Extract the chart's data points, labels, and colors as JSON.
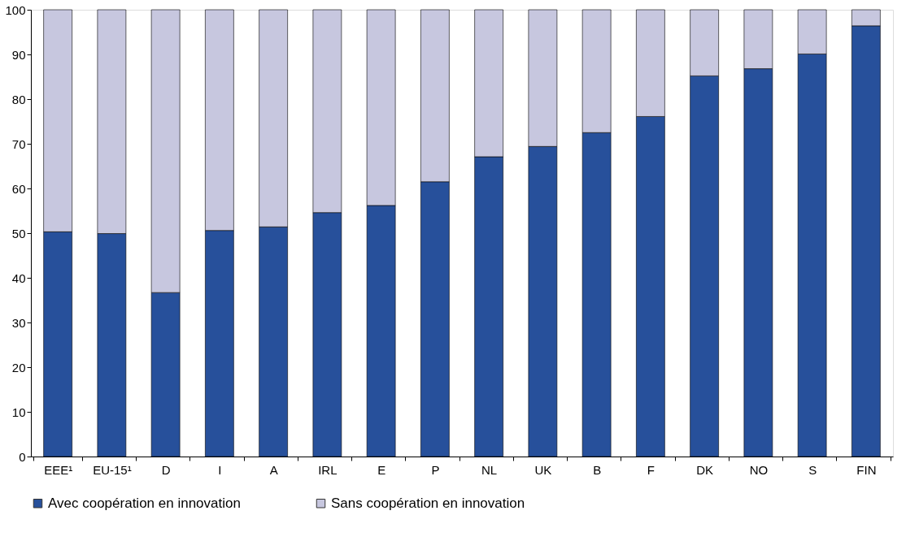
{
  "chart_data": {
    "type": "bar",
    "stacked": true,
    "categories": [
      "EEE¹",
      "EU-15¹",
      "D",
      "I",
      "A",
      "IRL",
      "E",
      "P",
      "NL",
      "UK",
      "B",
      "F",
      "DK",
      "NO",
      "S",
      "FIN"
    ],
    "series": [
      {
        "name": "Avec coopération en innovation",
        "color": "#27509b",
        "values": [
          50.3,
          49.9,
          36.7,
          50.6,
          51.4,
          54.6,
          56.2,
          61.5,
          67.1,
          69.4,
          72.5,
          76.1,
          85.2,
          86.8,
          90.1,
          96.4
        ]
      },
      {
        "name": "Sans coopération en innovation",
        "color": "#c7c7df",
        "values": [
          49.7,
          50.1,
          63.3,
          49.4,
          48.6,
          45.4,
          43.8,
          38.5,
          32.9,
          30.6,
          27.5,
          23.9,
          14.8,
          13.2,
          9.9,
          3.6
        ]
      }
    ],
    "ylim": [
      0,
      100
    ],
    "yticks": [
      0,
      10,
      20,
      30,
      40,
      50,
      60,
      70,
      80,
      90,
      100
    ],
    "grid": false,
    "legend": "bottom"
  }
}
